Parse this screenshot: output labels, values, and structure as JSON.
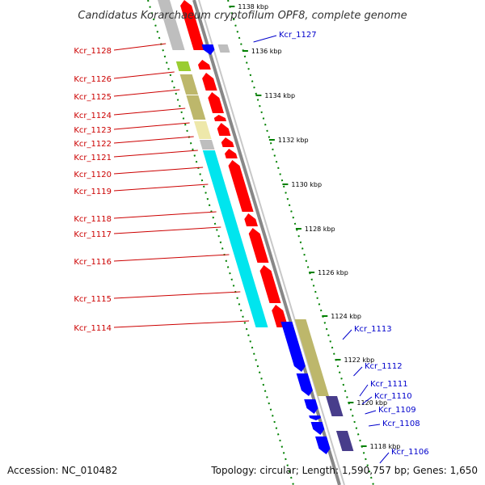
{
  "title": "Candidatus Korarchaeum cryptofilum OPF8, complete genome",
  "footer": {
    "accession": "Accession: NC_010482",
    "topology": "Topology: circular; Length: 1,590,757 bp; Genes: 1,650"
  },
  "colors": {
    "reverse_strand_label": "#cc0000",
    "forward_strand_label": "#0000cc",
    "reverse_gene": "#ff0000",
    "forward_gene": "#0000ff",
    "tick_marks": "#008000",
    "backbone": "#888888",
    "cog_cyan": "#00e5ee",
    "cog_khaki": "#bdb76b",
    "cog_slate": "#483d8b",
    "cog_grey": "#bebebe",
    "cog_yellow": "#eee8aa",
    "cog_green": "#9acd32"
  },
  "scale": {
    "unit": "kbp",
    "ticks": [
      "1138 kbp",
      "1136 kbp",
      "1134 kbp",
      "1132 kbp",
      "1130 kbp",
      "1128 kbp",
      "1126 kbp",
      "1124 kbp",
      "1122 kbp",
      "1120 kbp",
      "1118 kbp"
    ]
  },
  "genes_left": [
    "Kcr_1128",
    "Kcr_1126",
    "Kcr_1125",
    "Kcr_1124",
    "Kcr_1123",
    "Kcr_1122",
    "Kcr_1121",
    "Kcr_1120",
    "Kcr_1119",
    "Kcr_1118",
    "Kcr_1117",
    "Kcr_1116",
    "Kcr_1115",
    "Kcr_1114"
  ],
  "genes_right": [
    "Kcr_1127",
    "Kcr_1113",
    "Kcr_1112",
    "Kcr_1111",
    "Kcr_1110",
    "Kcr_1109",
    "Kcr_1108",
    "Kcr_1106"
  ]
}
